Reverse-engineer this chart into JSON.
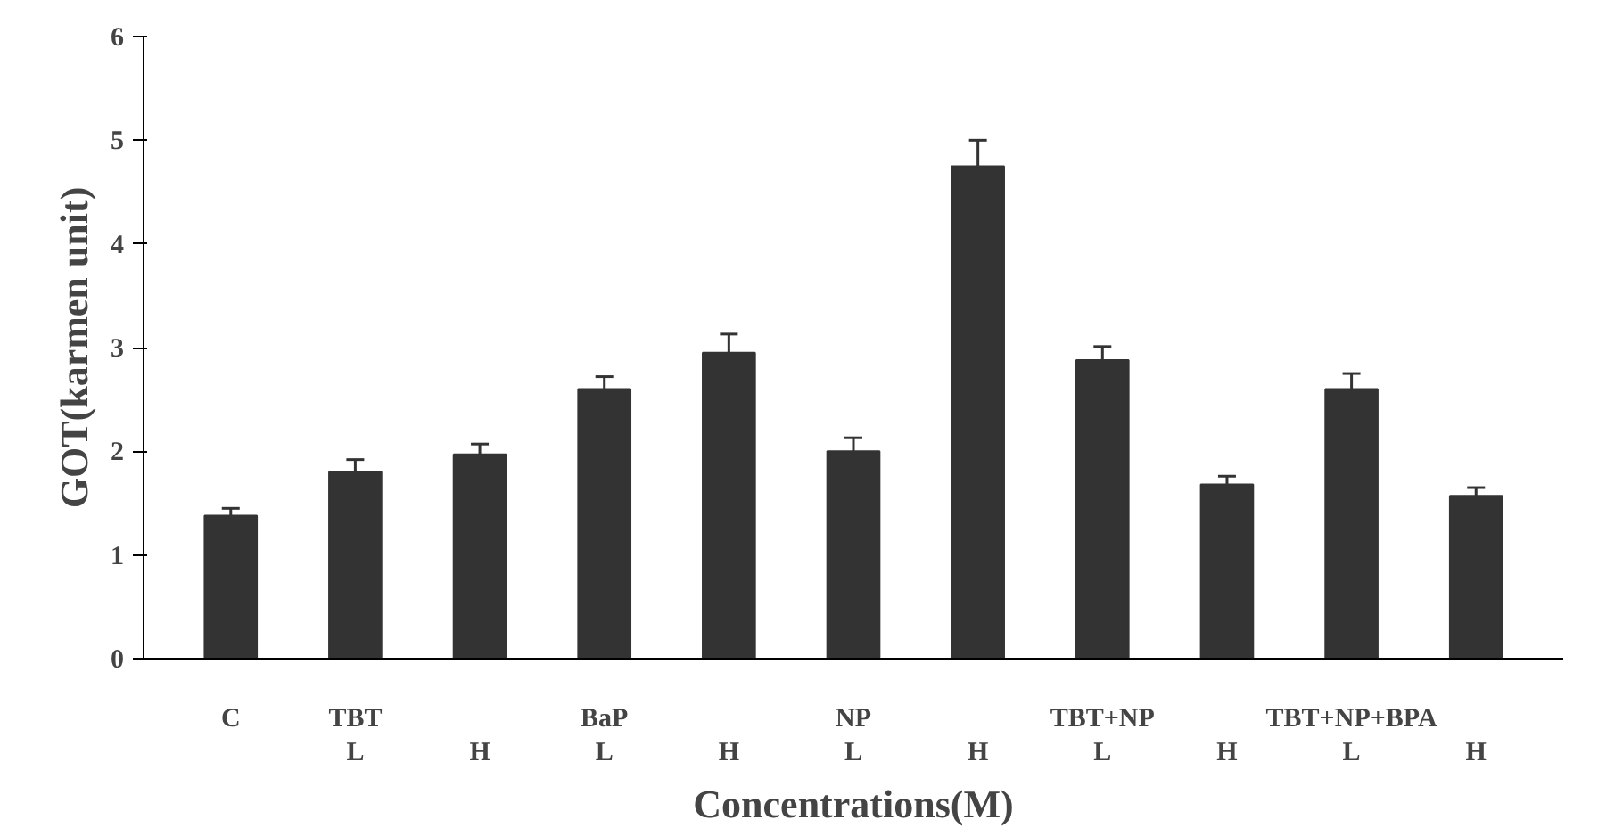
{
  "chart_data": {
    "type": "bar",
    "xlabel": "Concentrations(M)",
    "ylabel": "GOT(karmen unit)",
    "categories": [
      "C",
      "TBT\nL",
      "\nH",
      "BaP\nL",
      "\nH",
      "NP\nL",
      "\nH",
      "TBT+NP\nL",
      "\nH",
      "TBT+NP+BPA\nL",
      "\nH"
    ],
    "values": [
      1.38,
      1.8,
      1.97,
      2.6,
      2.95,
      2.0,
      4.75,
      2.88,
      1.68,
      2.6,
      1.57
    ],
    "errors": [
      0.07,
      0.12,
      0.1,
      0.12,
      0.18,
      0.13,
      0.25,
      0.13,
      0.08,
      0.15,
      0.08
    ],
    "color": "#333333",
    "ylim": [
      0,
      6
    ],
    "yticks": [
      0,
      1,
      2,
      3,
      4,
      5,
      6
    ],
    "grid": false
  }
}
